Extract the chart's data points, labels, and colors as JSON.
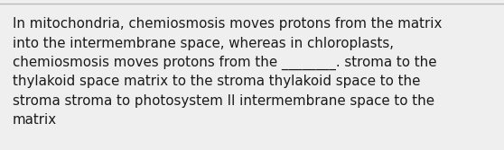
{
  "background_color": "#efefef",
  "top_line_color": "#bbbbbb",
  "text_color": "#1a1a1a",
  "font_size": 10.8,
  "line1": "In mitochondria, chemiosmosis moves protons from the matrix",
  "line2": "into the intermembrane space, whereas in chloroplasts,",
  "line3": "chemiosmosis moves protons from the ________. stroma to the",
  "line4": "thylakoid space matrix to the stroma thylakoid space to the",
  "line5": "stroma stroma to photosystem II intermembrane space to the",
  "line6": "matrix"
}
